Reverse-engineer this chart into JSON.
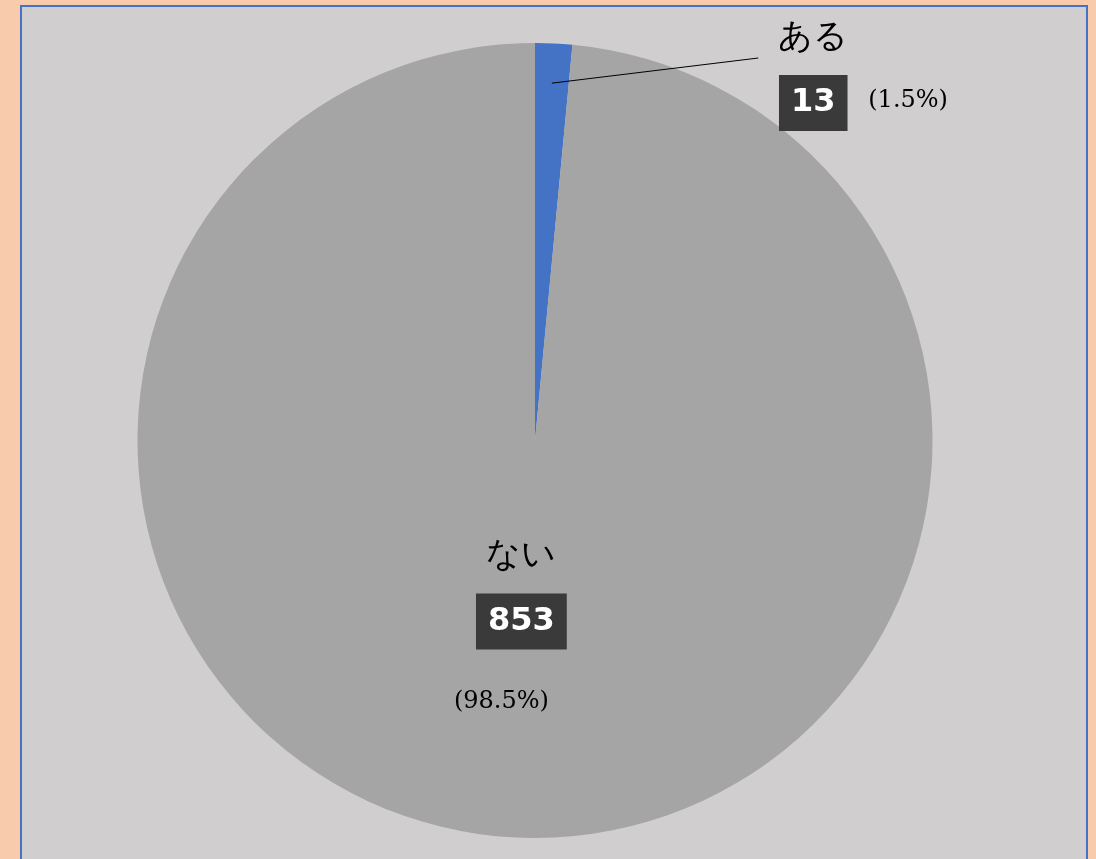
{
  "chart_data": {
    "type": "pie",
    "categories": [
      "ある",
      "ない"
    ],
    "values": [
      13,
      853
    ],
    "colors": [
      "#4472c4",
      "#a5a5a5"
    ],
    "data_labels": true,
    "legend": false,
    "annotations": [
      {
        "text": "(1.5%)",
        "x": "ある"
      },
      {
        "text": "(98.5%)",
        "x": "ない"
      }
    ]
  }
}
